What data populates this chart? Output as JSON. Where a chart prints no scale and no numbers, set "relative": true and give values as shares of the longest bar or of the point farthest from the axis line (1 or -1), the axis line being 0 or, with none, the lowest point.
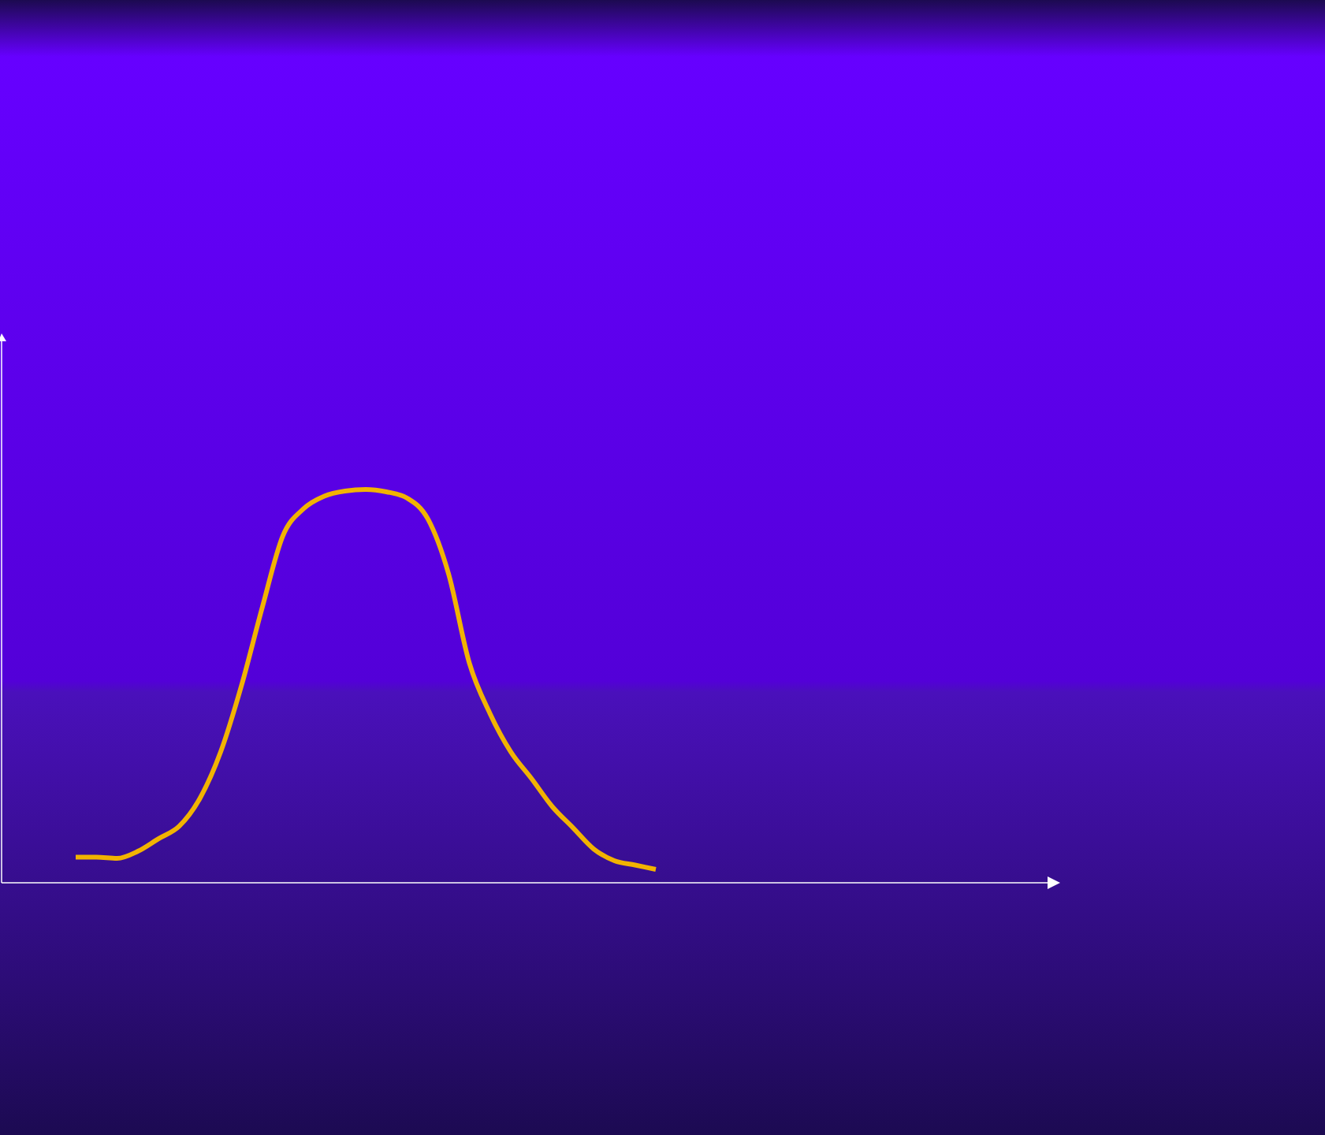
{
  "chart_data": {
    "type": "line",
    "relative": true,
    "categories": [
      null,
      null,
      null,
      null,
      null,
      null,
      null,
      null,
      null,
      null,
      null,
      null,
      null,
      null,
      null,
      null,
      null,
      null,
      null,
      null,
      null,
      null,
      null,
      null,
      null,
      null,
      null,
      null,
      null
    ],
    "series": [
      {
        "color": "#f2b300",
        "values": [
          0.065,
          0.065,
          0.062,
          0.08,
          0.112,
          0.144,
          0.215,
          0.333,
          0.501,
          0.699,
          0.882,
          0.951,
          0.983,
          0.996,
          1.0,
          0.994,
          0.978,
          0.925,
          0.785,
          0.559,
          0.43,
          0.333,
          0.265,
          0.194,
          0.14,
          0.086,
          0.056,
          0.045,
          0.034
        ]
      }
    ]
  }
}
